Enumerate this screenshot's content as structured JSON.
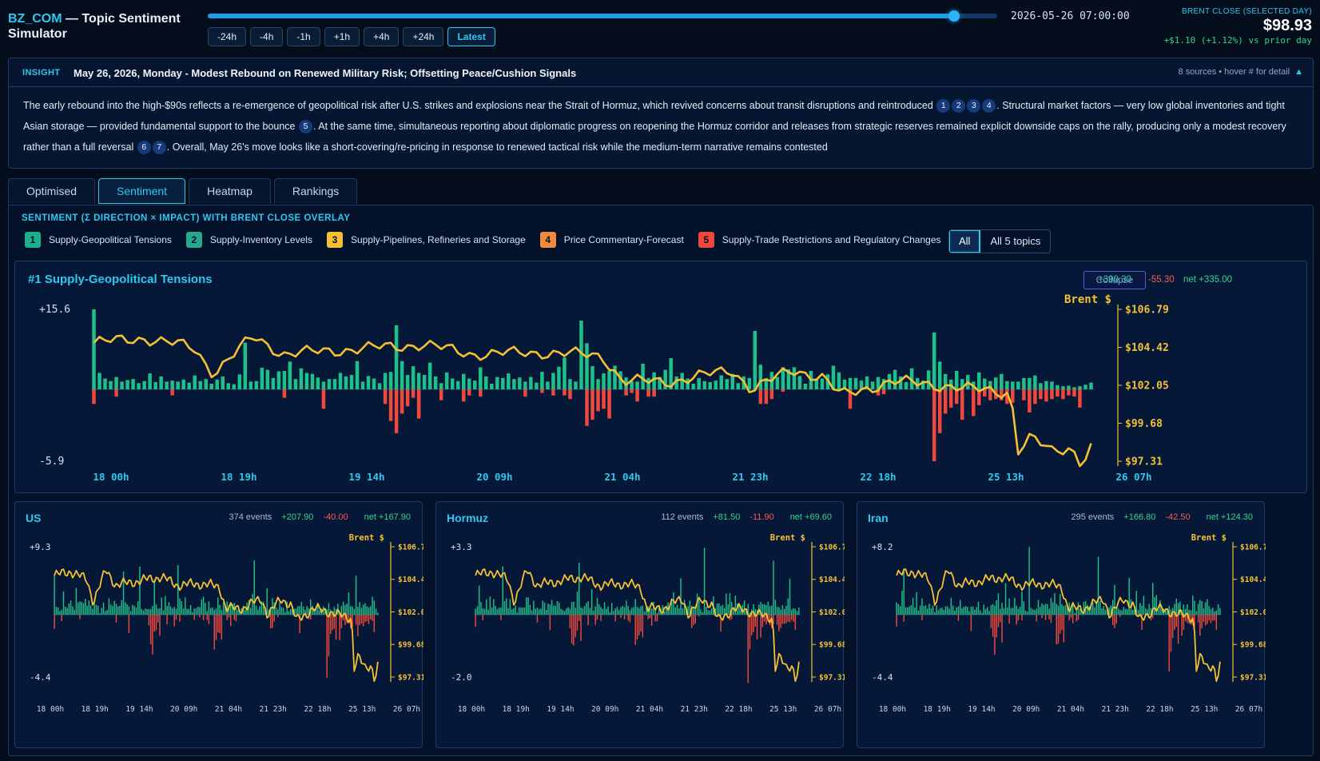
{
  "header": {
    "brand": "BZ_COM",
    "title_rest": " — Topic Sentiment Simulator",
    "timeline_progress": 0.945,
    "current_time": "2026-05-26  07:00:00",
    "step_buttons": [
      "-24h",
      "-4h",
      "-1h",
      "+1h",
      "+4h",
      "+24h",
      "Latest"
    ],
    "active_step": "Latest",
    "brent_label": "BRENT CLOSE (SELECTED DAY)",
    "brent_price": "$98.93",
    "brent_change": "+$1.10 (+1.12%) vs prior day"
  },
  "insight": {
    "tag": "INSIGHT",
    "title": "May 26, 2026, Monday - Modest Rebound on Renewed Military Risk; Offsetting Peace/Cushion Signals",
    "meta": "8 sources  •  hover # for detail",
    "segments": [
      {
        "text": "The early rebound into the high-$90s reflects a re-emergence of geopolitical risk after U.S. strikes and explosions near the Strait of Hormuz, which revived concerns about transit disruptions and reintroduced ",
        "refs": [
          "1",
          "2",
          "3",
          "4"
        ]
      },
      {
        "text": ". Structural market factors — very low global inventories and tight Asian storage — provided fundamental support to the bounce ",
        "refs": [
          "5"
        ]
      },
      {
        "text": ". At the same time, simultaneous reporting about diplomatic progress on reopening the Hormuz corridor and releases from strategic reserves remained explicit downside caps on the rally, producing only a modest recovery rather than a full reversal ",
        "refs": [
          "6",
          "7"
        ]
      },
      {
        "text": ". Overall, May 26's move looks like a short-covering/re-pricing in response to renewed tactical risk while the medium-term narrative remains contested",
        "refs": []
      }
    ]
  },
  "tabs": [
    "Optimised",
    "Sentiment",
    "Heatmap",
    "Rankings"
  ],
  "active_tab": "Sentiment",
  "section_title": "SENTIMENT (Σ DIRECTION × IMPACT) WITH BRENT CLOSE OVERLAY",
  "topics": [
    {
      "num": "1",
      "label": "Supply-Geopolitical Tensions",
      "color": "#1fae8c"
    },
    {
      "num": "2",
      "label": "Supply-Inventory Levels",
      "color": "#27a88a"
    },
    {
      "num": "3",
      "label": "Supply-Pipelines, Refineries and Storage",
      "color": "#f5c033"
    },
    {
      "num": "4",
      "label": "Price Commentary-Forecast",
      "color": "#f08a3c"
    },
    {
      "num": "5",
      "label": "Supply-Trade Restrictions and Regulatory Changes",
      "color": "#f0483c"
    }
  ],
  "filter": {
    "all": "All",
    "all_topics": "All 5 topics"
  },
  "main_chart": {
    "title": "#1 Supply-Geopolitical Tensions",
    "collapse_label": "Collapse",
    "pos_sum": "+390.30",
    "neg_sum": "-55.30",
    "net": "net +335.00"
  },
  "sub_cards": [
    {
      "title": "US",
      "events": "374 events",
      "pos": "+207.90",
      "neg": "-40.00",
      "net": "net +167.90"
    },
    {
      "title": "Hormuz",
      "events": "112 events",
      "pos": "+81.50",
      "neg": "-11.90",
      "net": "net +69.60"
    },
    {
      "title": "Iran",
      "events": "295 events",
      "pos": "+166.80",
      "neg": "-42.50",
      "net": "net +124.30"
    }
  ],
  "chart_data": [
    {
      "type": "bar+line",
      "title": "#1 Supply-Geopolitical Tensions",
      "ylabel_right": "Brent $",
      "ylim_left": [
        -5.9,
        15.6
      ],
      "y_right_ticks": [
        "$106.79",
        "$104.42",
        "$102.05",
        "$99.68",
        "$97.31"
      ],
      "y_left_ticks": [
        "+15.6",
        "-5.9"
      ],
      "x_ticks": [
        "18 00h",
        "18 19h",
        "19 14h",
        "20 09h",
        "21 04h",
        "21 23h",
        "22 18h",
        "25 13h",
        "26 07h"
      ],
      "pos_bars": [
        15.6,
        3.2,
        2.1,
        1.6,
        2.4,
        1.5,
        1.8,
        2.0,
        1.2,
        1.6,
        3.1,
        1.4,
        2.5,
        1.5,
        1.7,
        1.5,
        1.9,
        1.3,
        2.7,
        1.6,
        2.0,
        1.1,
        1.9,
        2.5,
        1.2,
        1.0,
        2.9,
        9.1,
        1.5,
        1.6,
        4.2,
        3.8,
        2.2,
        3.5,
        3.6,
        5.4,
        2.0,
        4.1,
        3.2,
        3.0,
        2.3,
        1.5,
        2.0,
        2.0,
        3.2,
        2.5,
        2.8,
        5.5,
        1.5,
        2.6,
        2.1,
        1.2,
        3.2,
        3.4,
        12.5,
        5.5,
        2.8,
        4.5,
        3.2,
        2.8,
        5.2,
        2.5,
        1.2,
        3.3,
        2.1,
        1.6,
        3.0,
        2.1,
        1.7,
        4.3,
        2.5,
        1.1,
        2.4,
        2.2,
        3.1,
        2.0,
        2.3,
        1.5,
        2.4,
        1.3,
        3.4,
        1.5,
        3.2,
        4.4,
        6.2,
        2.0,
        1.5,
        13.4,
        9.0,
        4.5,
        2.0,
        3.1,
        3.6,
        4.6,
        3.5,
        2.3,
        1.6,
        1.5,
        5.0,
        2.2,
        3.3,
        2.4,
        3.8,
        6.1,
        2.5,
        3.2,
        2.1,
        1.1,
        2.2,
        1.6,
        1.4,
        1.7,
        2.7,
        2.0,
        3.0,
        1.2,
        2.5,
        2.2,
        11.4,
        4.8,
        2.2,
        3.4,
        2.4,
        4.3,
        3.9,
        4.3,
        2.6,
        1.1,
        3.6,
        2.1,
        2.1,
        2.9,
        4.6,
        3.3,
        1.9,
        2.2,
        2.2,
        1.7,
        2.5,
        1.5,
        2.4,
        2.0,
        3.0,
        3.8,
        2.5,
        1.4,
        4.1,
        2.2,
        1.7,
        3.7,
        11.1,
        5.4,
        3.0,
        1.9,
        3.6,
        2.0,
        2.8,
        1.5,
        3.3,
        2.1,
        1.6,
        2.3,
        3.0,
        1.6,
        1.5,
        1.5,
        2.2,
        2.2,
        2.7,
        1.2,
        1.6,
        1.5,
        0.8,
        0.6,
        0.7,
        0.4,
        0.6,
        0.9,
        1.3
      ],
      "neg_bars": [
        -1.2,
        0,
        0,
        0,
        -0.6,
        0,
        0,
        0,
        0,
        0,
        0,
        0,
        0,
        0,
        -0.5,
        0,
        0,
        0,
        0,
        0,
        0,
        0,
        0,
        0,
        0,
        0,
        0,
        0,
        0,
        0,
        0,
        0,
        0,
        0,
        -0.7,
        0,
        0,
        0,
        0,
        0,
        0,
        -1.6,
        0,
        0,
        0,
        0,
        0,
        0,
        0,
        0,
        0,
        0,
        -1.2,
        -2.6,
        -3.6,
        -2.0,
        -1.4,
        -0.7,
        -2.4,
        0,
        0,
        0,
        -0.9,
        0,
        0,
        0,
        -1.0,
        -0.5,
        0,
        -0.6,
        0,
        0,
        0,
        0,
        0,
        0,
        0,
        -0.6,
        0,
        0,
        -0.3,
        0,
        -0.5,
        0,
        -0.5,
        -0.8,
        0,
        0,
        -3.0,
        -2.5,
        -1.8,
        -1.6,
        -2.4,
        0,
        0,
        -0.5,
        -0.3,
        -1.0,
        0,
        -0.6,
        -0.6,
        0,
        0,
        0,
        0,
        0,
        0,
        0,
        0,
        0,
        0,
        0,
        0,
        0,
        0,
        0,
        0,
        0,
        0,
        -1.2,
        -1.2,
        -0.8,
        0,
        -0.2,
        0,
        0,
        0,
        0,
        0,
        0,
        0,
        0,
        0,
        0,
        0,
        -1.6,
        0,
        0,
        0,
        0,
        -0.5,
        -0.4,
        0,
        0,
        0,
        0,
        0,
        0,
        0,
        0,
        -5.9,
        -3.6,
        -2.0,
        -1.5,
        -1.2,
        -2.5,
        0,
        -2.2,
        -1.3,
        -0.6,
        -0.9,
        -0.8,
        -0.9,
        -1.2,
        -1.1,
        0,
        -0.9,
        -1.9,
        -1.2,
        -0.8,
        -1.0,
        -0.8,
        -0.6,
        -0.8,
        -0.5,
        -0.6,
        -1.5,
        0,
        0,
        0,
        0,
        0,
        0,
        0
      ]
    }
  ]
}
